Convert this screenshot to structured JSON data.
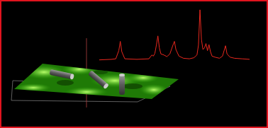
{
  "chart_data": {
    "type": "line",
    "x": [
      0,
      8,
      11,
      13,
      14,
      15,
      17,
      25,
      33,
      35,
      36,
      37,
      38,
      39,
      40,
      41,
      43,
      45,
      47,
      49,
      50,
      51,
      53,
      56,
      60,
      63,
      65,
      66,
      67,
      68,
      69,
      70,
      71,
      72,
      73,
      74,
      75,
      77,
      80,
      82,
      84,
      85,
      87,
      90,
      95,
      100
    ],
    "values": [
      3,
      4,
      5,
      20,
      37,
      18,
      5,
      4,
      5,
      12,
      10,
      15,
      30,
      47,
      25,
      14,
      12,
      9,
      14,
      30,
      37,
      22,
      10,
      6,
      5,
      7,
      12,
      30,
      95,
      40,
      22,
      25,
      33,
      20,
      31,
      18,
      10,
      8,
      6,
      10,
      29,
      14,
      8,
      6,
      5,
      4
    ],
    "color": "#e8281e",
    "xlim": [
      0,
      100
    ],
    "ylim": [
      0,
      100
    ],
    "tick_labels": false,
    "grid": false
  }
}
